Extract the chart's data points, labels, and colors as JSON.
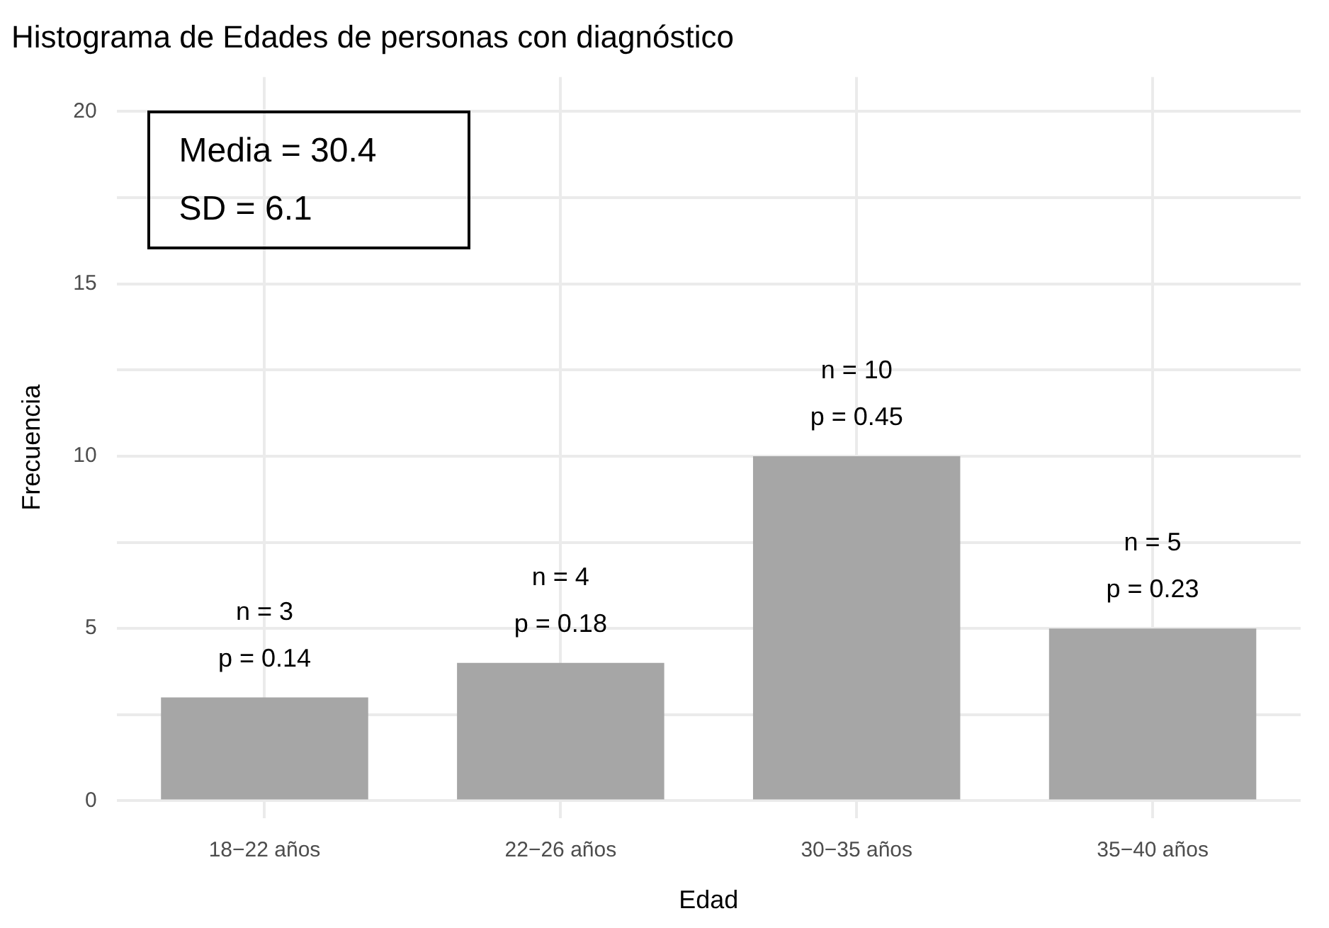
{
  "chart_data": {
    "type": "bar",
    "title": "Histograma de Edades de personas con diagnóstico",
    "xlabel": "Edad",
    "ylabel": "Frecuencia",
    "categories": [
      "18−22 años",
      "22−26 años",
      "30−35 años",
      "35−40 años"
    ],
    "values": [
      3,
      4,
      10,
      5
    ],
    "color": "#a6a6a6",
    "value_labels": [
      "n = 3\np = 0.14",
      "n = 4\np = 0.18",
      "n = 10\np = 0.45",
      "n = 5\np = 0.23"
    ],
    "annotations": [
      "Media = 30.4\nSD = 6.1"
    ],
    "ylim": [
      -0.5,
      21
    ],
    "yticks": [
      0,
      {
        "value": 2.5,
        "label": null
      },
      5,
      {
        "value": 7.5,
        "label": null
      },
      10,
      {
        "value": 12.5,
        "label": null
      },
      15,
      {
        "value": 17.5,
        "label": null
      },
      20
    ],
    "grid": true,
    "legend": false
  }
}
